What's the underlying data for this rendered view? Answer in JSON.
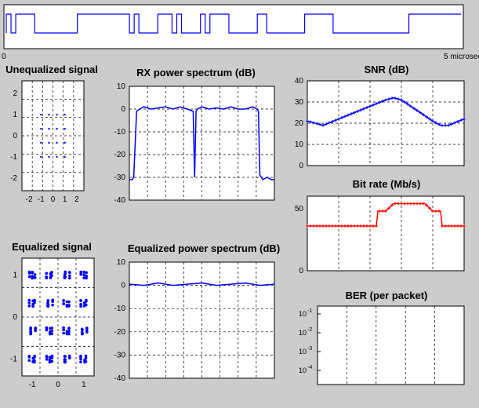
{
  "colors": {
    "background": "#cccccc",
    "plot_bg": "#ffffff",
    "blue": "#0000ff",
    "red": "#ff0000",
    "grid": "#000000"
  },
  "waveform": {
    "xstart": "0",
    "xend": "5 microsec"
  },
  "chart_data": [
    {
      "type": "scatter",
      "title": "Unequalized signal",
      "xlim": [
        -2.6,
        2.6
      ],
      "ylim": [
        -2.6,
        2.6
      ],
      "xticks": [
        "-2",
        "-1",
        "0",
        "1",
        "2"
      ],
      "yticks": [
        "2",
        "1",
        "0",
        "-1",
        "-2"
      ],
      "series": [
        {
          "values": [
            [
              -1,
              1
            ],
            [
              -0.33,
              1
            ],
            [
              0.33,
              1
            ],
            [
              1,
              1
            ],
            [
              -1,
              0.33
            ],
            [
              -0.33,
              0.33
            ],
            [
              0.33,
              0.33
            ],
            [
              1,
              0.33
            ],
            [
              -1,
              -0.33
            ],
            [
              -0.33,
              -0.33
            ],
            [
              0.33,
              -0.33
            ],
            [
              1,
              -0.33
            ],
            [
              -1,
              -1
            ],
            [
              -0.33,
              -1
            ],
            [
              0.33,
              -1
            ],
            [
              1,
              -1
            ]
          ]
        }
      ]
    },
    {
      "type": "line",
      "title": "RX power spectrum (dB)",
      "ylim": [
        -40,
        10
      ],
      "yticks": [
        "10",
        "0",
        "-10",
        "-20",
        "-30",
        "-40"
      ],
      "x": [
        0,
        2,
        3,
        5,
        7,
        10,
        15,
        20,
        25,
        30,
        35,
        40,
        44,
        45,
        46,
        47,
        50,
        55,
        60,
        65,
        70,
        75,
        80,
        85,
        88,
        89,
        90,
        92,
        95,
        98,
        100
      ],
      "series": [
        {
          "values": [
            -31,
            -31,
            -30,
            -1,
            0,
            1,
            0,
            0.5,
            1,
            0,
            1,
            0,
            -1,
            -30,
            -1,
            0,
            1,
            0,
            0.5,
            0,
            1,
            0,
            0,
            1,
            0,
            -1,
            -29,
            -31,
            -30,
            -31,
            -31
          ]
        }
      ]
    },
    {
      "type": "line",
      "title": "SNR (dB)",
      "ylim": [
        0,
        40
      ],
      "yticks": [
        "40",
        "30",
        "20",
        "10",
        "0"
      ],
      "x": [
        0,
        10,
        20,
        30,
        40,
        50,
        55,
        60,
        70,
        80,
        85,
        90,
        100
      ],
      "series": [
        {
          "values": [
            21,
            19,
            22,
            25,
            28,
            31,
            32,
            31,
            26,
            21,
            19,
            19,
            22
          ]
        }
      ]
    },
    {
      "type": "line",
      "title": "Bit rate (Mb/s)",
      "ylim": [
        0,
        60
      ],
      "yticks": [
        "50",
        "0"
      ],
      "x": [
        0,
        10,
        20,
        30,
        40,
        44,
        45,
        50,
        55,
        60,
        70,
        75,
        80,
        85,
        86,
        90,
        100
      ],
      "series": [
        {
          "values": [
            36,
            36,
            36,
            36,
            36,
            36,
            48,
            48,
            54,
            54,
            54,
            54,
            48,
            48,
            36,
            36,
            36
          ]
        }
      ]
    },
    {
      "type": "scatter",
      "title": "Equalized signal",
      "xlim": [
        -1.4,
        1.4
      ],
      "ylim": [
        -1.4,
        1.4
      ],
      "xticks": [
        "-1",
        "0",
        "1"
      ],
      "yticks": [
        "1",
        "0",
        "-1"
      ],
      "series": [
        {
          "values": [
            [
              -1,
              1
            ],
            [
              -0.33,
              1
            ],
            [
              0.33,
              1
            ],
            [
              1,
              1
            ],
            [
              -1,
              0.33
            ],
            [
              -0.33,
              0.33
            ],
            [
              0.33,
              0.33
            ],
            [
              1,
              0.33
            ],
            [
              -1,
              -0.33
            ],
            [
              -0.33,
              -0.33
            ],
            [
              0.33,
              -0.33
            ],
            [
              1,
              -0.33
            ],
            [
              -1,
              -1
            ],
            [
              -0.33,
              -1
            ],
            [
              0.33,
              -1
            ],
            [
              1,
              -1
            ]
          ]
        }
      ]
    },
    {
      "type": "line",
      "title": "Equalized power spectrum (dB)",
      "ylim": [
        -40,
        10
      ],
      "yticks": [
        "10",
        "0",
        "-10",
        "-20",
        "-30",
        "-40"
      ],
      "x": [
        0,
        10,
        20,
        30,
        40,
        50,
        60,
        70,
        80,
        90,
        100
      ],
      "series": [
        {
          "values": [
            0.5,
            0,
            1,
            0,
            0.5,
            1,
            0,
            0.5,
            1,
            0,
            0.5
          ]
        }
      ]
    },
    {
      "type": "line",
      "title": "BER (per packet)",
      "ylim": [
        -4,
        -0.5
      ],
      "yticks": [
        "10^-1",
        "10^-2",
        "10^-3",
        "10^-4"
      ],
      "series": [
        {
          "values": []
        }
      ]
    }
  ]
}
